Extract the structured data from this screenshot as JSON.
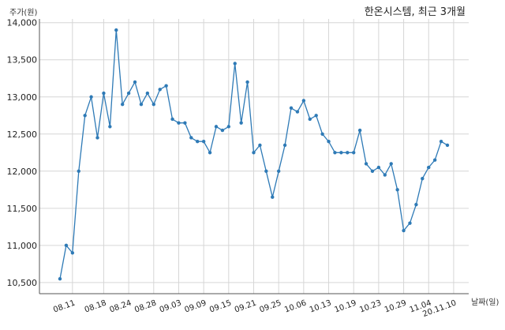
{
  "chart_data": {
    "type": "line",
    "title": "한온시스템, 최근 3개월",
    "ylabel": "주가(원)",
    "xlabel": "날짜(일)",
    "ylim": [
      10350,
      14050
    ],
    "yticks": [
      10500,
      11000,
      11500,
      12000,
      12500,
      13000,
      13500,
      14000
    ],
    "ytick_labels": [
      "10,500",
      "11,000",
      "11,500",
      "12,000",
      "12,500",
      "13,000",
      "13,500",
      "14,000"
    ],
    "x_tick_labels": [
      "08.11",
      "08.18",
      "08.24",
      "08.28",
      "09.03",
      "09.09",
      "09.15",
      "09.21",
      "09.25",
      "10.06",
      "10.13",
      "10.19",
      "10.23",
      "10.29",
      "11.04",
      "20.11.10"
    ],
    "x_tick_index": [
      2,
      7,
      11,
      15,
      19,
      23,
      27,
      31,
      35,
      39,
      43,
      47,
      51,
      55,
      59,
      63
    ],
    "grid": true,
    "line_color": "#2e7ab6",
    "series": [
      {
        "values": [
          10550,
          11000,
          10900,
          12000,
          12750,
          13000,
          12450,
          13050,
          12600,
          13900,
          12900,
          13050,
          13200,
          12900,
          13050,
          12900,
          13100,
          13150,
          12700,
          12650,
          12650,
          12450,
          12400,
          12400,
          12250,
          12600,
          12550,
          12600,
          13450,
          12650,
          13200,
          12250,
          12350,
          12000,
          11650,
          12000,
          12350,
          12850,
          12800,
          12950,
          12700,
          12750,
          12500,
          12400,
          12250,
          12250,
          12250,
          12250,
          12550,
          12100,
          12000,
          12050,
          11950,
          12100,
          11750,
          11200,
          11300,
          11550,
          11900,
          12050,
          12150,
          12400,
          12350
        ]
      }
    ]
  }
}
